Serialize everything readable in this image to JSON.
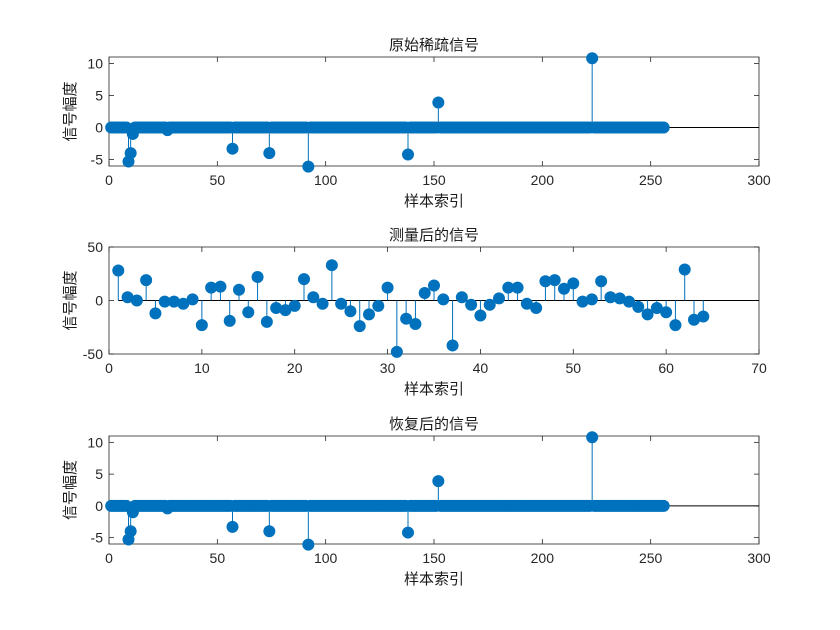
{
  "chart_data": [
    {
      "type": "stem",
      "title": "原始稀疏信号",
      "xlabel": "",
      "ylabel": "信号幅度",
      "xlim": [
        0,
        300
      ],
      "ylim": [
        -6,
        11
      ],
      "xticks": [
        0,
        50,
        100,
        150,
        200,
        250,
        300
      ],
      "yticks": [
        -5,
        0,
        5,
        10
      ],
      "n_points": 256,
      "nonzero": [
        [
          9,
          -5.3
        ],
        [
          10,
          -4.0
        ],
        [
          11,
          -1.0
        ],
        [
          27,
          -0.4
        ],
        [
          57,
          -3.3
        ],
        [
          74,
          -4.0
        ],
        [
          92,
          -6.1
        ],
        [
          138,
          -4.2
        ],
        [
          152,
          3.9
        ],
        [
          223,
          10.8
        ]
      ]
    },
    {
      "type": "stem",
      "title": "测量后的信号",
      "xlabel": "样本索引",
      "ylabel": "信号幅度",
      "xlim": [
        0,
        70
      ],
      "ylim": [
        -50,
        50
      ],
      "xticks": [
        0,
        10,
        20,
        30,
        40,
        50,
        60,
        70
      ],
      "yticks": [
        -50,
        0,
        50
      ],
      "x": [
        1,
        2,
        3,
        4,
        5,
        6,
        7,
        8,
        9,
        10,
        11,
        12,
        13,
        14,
        15,
        16,
        17,
        18,
        19,
        20,
        21,
        22,
        23,
        24,
        25,
        26,
        27,
        28,
        29,
        30,
        31,
        32,
        33,
        34,
        35,
        36,
        37,
        38,
        39,
        40,
        41,
        42,
        43,
        44,
        45,
        46,
        47,
        48,
        49,
        50,
        51,
        52,
        53,
        54,
        55,
        56,
        57,
        58,
        59,
        60,
        61,
        62,
        63,
        64
      ],
      "y": [
        28,
        3,
        0,
        19,
        -12,
        -1,
        -1,
        -3,
        1,
        -23,
        12,
        13,
        -19,
        10,
        -11,
        22,
        -20,
        -7,
        -9,
        -5,
        20,
        3,
        -3,
        33,
        -3,
        -10,
        -24,
        -13,
        -5,
        12,
        -48,
        -17,
        -22,
        7,
        14,
        1,
        -42,
        3,
        -4,
        -14,
        -4,
        2,
        12,
        12,
        -3,
        -7,
        18,
        19,
        11,
        16,
        -1,
        1,
        18,
        3,
        2,
        -1,
        -6,
        -13,
        -7,
        -11,
        -23,
        29,
        -18,
        -15
      ]
    },
    {
      "type": "stem",
      "title": "恢复后的信号",
      "xlabel": "样本索引",
      "ylabel": "信号幅度",
      "xlim": [
        0,
        300
      ],
      "ylim": [
        -6,
        11
      ],
      "xticks": [
        0,
        50,
        100,
        150,
        200,
        250,
        300
      ],
      "yticks": [
        -5,
        0,
        5,
        10
      ],
      "n_points": 256,
      "nonzero": [
        [
          9,
          -5.3
        ],
        [
          10,
          -4.0
        ],
        [
          11,
          -1.0
        ],
        [
          27,
          -0.4
        ],
        [
          57,
          -3.3
        ],
        [
          74,
          -4.0
        ],
        [
          92,
          -6.1
        ],
        [
          138,
          -4.2
        ],
        [
          152,
          3.9
        ],
        [
          223,
          10.8
        ]
      ]
    }
  ],
  "xlabel_top": "样本索引",
  "colors": {
    "stem": "#0072BD",
    "axis": "#262626"
  }
}
